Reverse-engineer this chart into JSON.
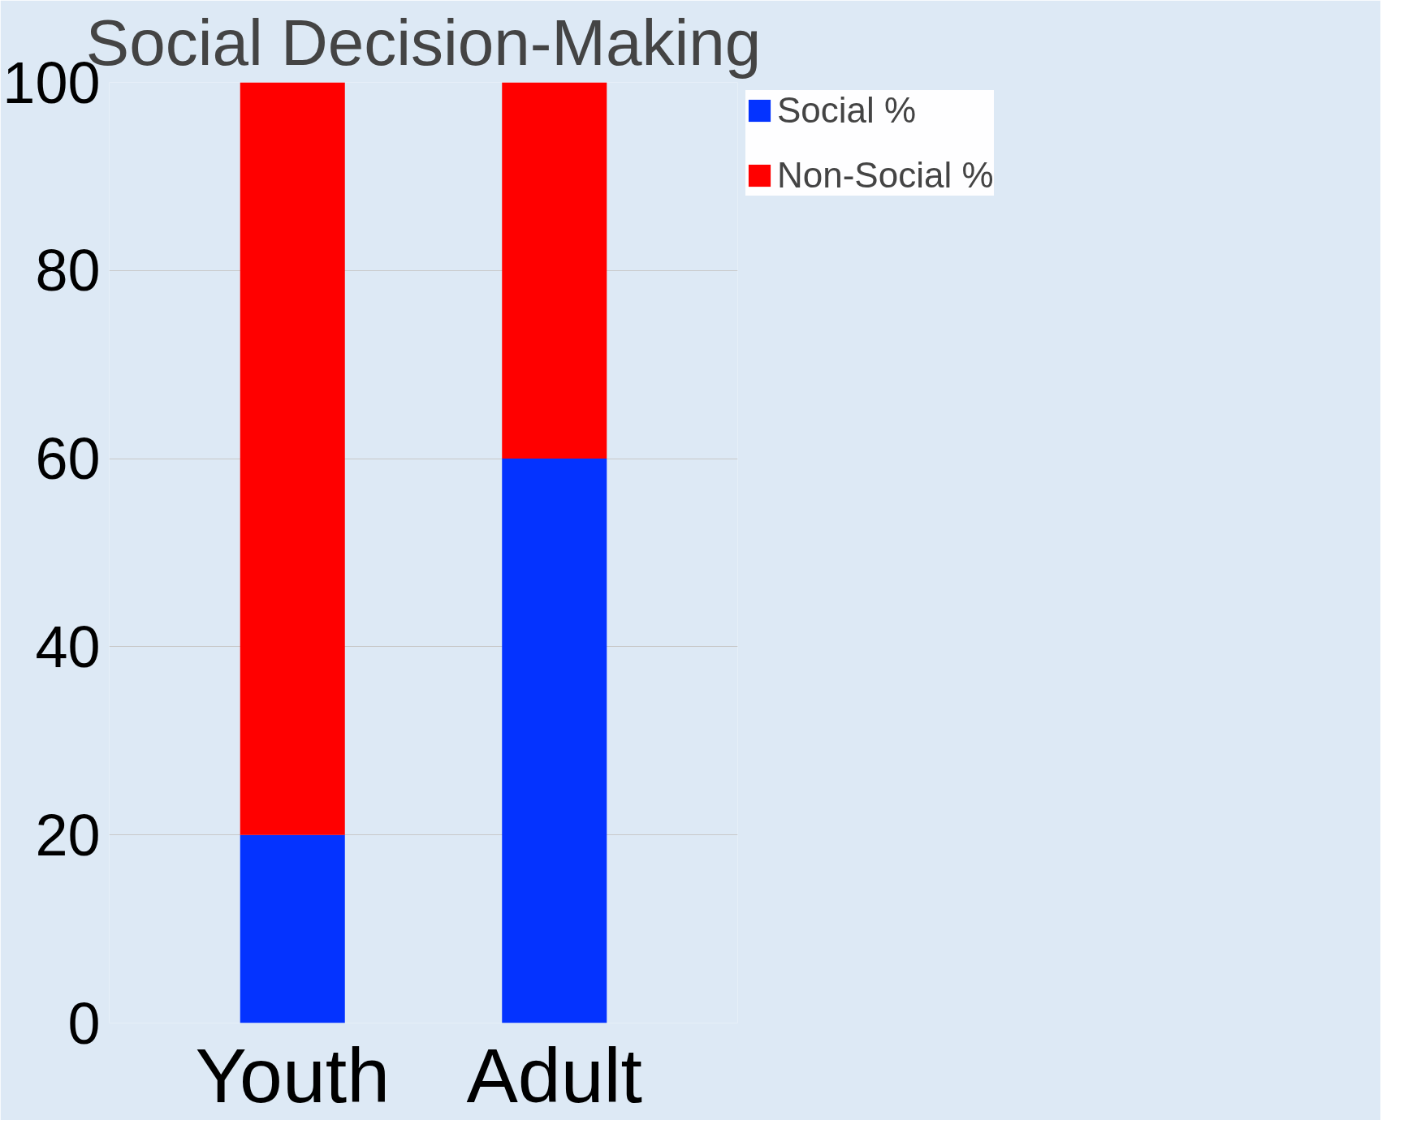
{
  "chart_data": {
    "type": "bar",
    "title": "Social Decision-Making",
    "categories": [
      "Youth",
      "Adult"
    ],
    "stacked": true,
    "series": [
      {
        "name": "Social %",
        "color": "#0433ff",
        "values": [
          20,
          60
        ]
      },
      {
        "name": "Non-Social %",
        "color": "#ff0000",
        "values": [
          80,
          40
        ]
      }
    ],
    "ylim": [
      0,
      100
    ],
    "yticks": [
      0,
      20,
      40,
      60,
      80,
      100
    ],
    "grid": "y",
    "legend": "top right"
  }
}
